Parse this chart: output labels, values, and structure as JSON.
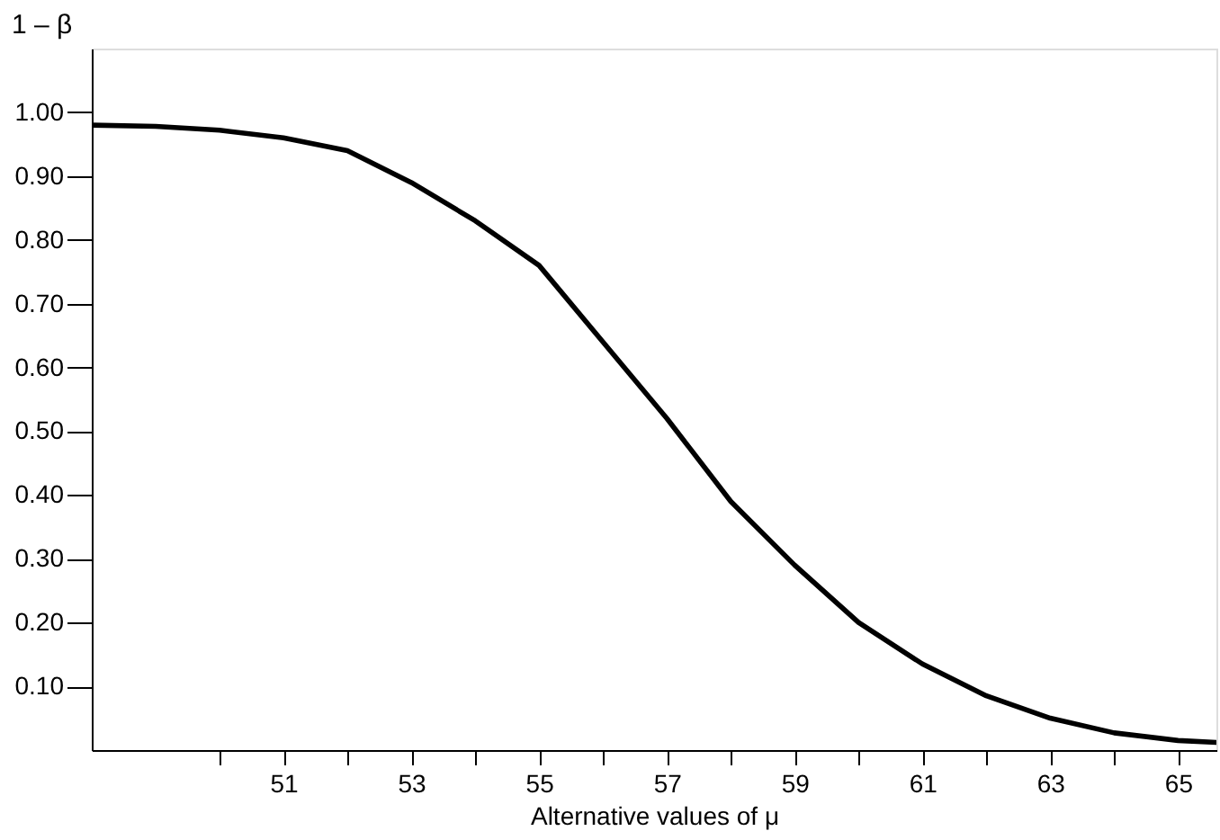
{
  "chart_data": {
    "type": "line",
    "xlabel": "Alternative values of μ",
    "ylabel": "1 – β",
    "x": [
      48,
      49,
      50,
      51,
      52,
      53,
      54,
      55,
      56,
      57,
      58,
      59,
      60,
      61,
      62,
      63,
      64,
      65,
      65.6
    ],
    "series": [
      {
        "color": "#000000",
        "values": [
          0.98,
          0.978,
          0.972,
          0.96,
          0.94,
          0.89,
          0.83,
          0.76,
          0.64,
          0.52,
          0.39,
          0.29,
          0.2,
          0.135,
          0.085,
          0.05,
          0.027,
          0.015,
          0.012
        ]
      }
    ],
    "xlim": [
      48,
      65.6
    ],
    "ylim": [
      0,
      1.1
    ],
    "xticks": [
      {
        "value": 50,
        "label": null
      },
      51,
      {
        "value": 52,
        "label": null
      },
      53,
      {
        "value": 54,
        "label": null
      },
      55,
      {
        "value": 56,
        "label": null
      },
      57,
      {
        "value": 58,
        "label": null
      },
      59,
      {
        "value": 60,
        "label": null
      },
      61,
      {
        "value": 62,
        "label": null
      },
      63,
      {
        "value": 64,
        "label": null
      },
      65
    ],
    "yticks": [
      {
        "value": 0.1,
        "label": "0.10"
      },
      {
        "value": 0.2,
        "label": "0.20"
      },
      {
        "value": 0.3,
        "label": "0.30"
      },
      {
        "value": 0.4,
        "label": "0.40"
      },
      {
        "value": 0.5,
        "label": "0.50"
      },
      {
        "value": 0.6,
        "label": "0.60"
      },
      {
        "value": 0.7,
        "label": "0.70"
      },
      {
        "value": 0.8,
        "label": "0.80"
      },
      {
        "value": 0.9,
        "label": "0.90"
      },
      {
        "value": 1.0,
        "label": "1.00"
      }
    ],
    "grid": false,
    "legend": false,
    "marker": "none",
    "line_style": "solid"
  }
}
